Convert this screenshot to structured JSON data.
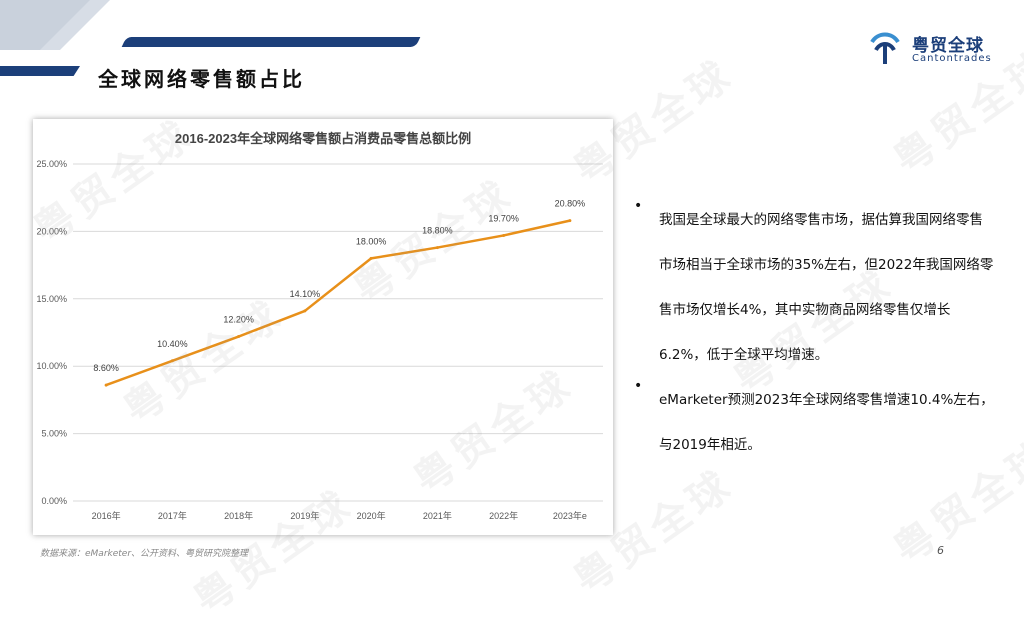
{
  "header": {
    "title": "全球网络零售额占比",
    "logo_cn": "粤贸全球",
    "logo_en": "Cantontrades"
  },
  "watermark_text": "粤贸全球",
  "colors": {
    "accent": "#1c3f7a",
    "line": "#e8901a"
  },
  "chart_data": {
    "type": "line",
    "title": "2016-2023年全球网络零售额占消费品零售总额比例",
    "categories": [
      "2016年",
      "2017年",
      "2018年",
      "2019年",
      "2020年",
      "2021年",
      "2022年",
      "2023年e"
    ],
    "values": [
      8.6,
      10.4,
      12.2,
      14.1,
      18.0,
      18.8,
      19.7,
      20.8
    ],
    "value_labels": [
      "8.60%",
      "10.40%",
      "12.20%",
      "14.10%",
      "18.00%",
      "18.80%",
      "19.70%",
      "20.80%"
    ],
    "ylim": [
      0,
      25
    ],
    "yticks": [
      "0.00%",
      "5.00%",
      "10.00%",
      "15.00%",
      "20.00%",
      "25.00%"
    ],
    "grid": true,
    "xlabel": "",
    "ylabel": ""
  },
  "bullets": [
    "我国是全球最大的网络零售市场，据估算我国网络零售市场相当于全球市场的35%左右，但2022年我国网络零售市场仅增长4%，其中实物商品网络零售仅增长6.2%，低于全球平均增速。",
    "eMarketer预测2023年全球网络零售增速10.4%左右，与2019年相近。"
  ],
  "bullet_symbol": "•",
  "footer": {
    "source": "数据来源：eMarketer、公开资料、粤贸研究院整理",
    "page_number": "6"
  }
}
